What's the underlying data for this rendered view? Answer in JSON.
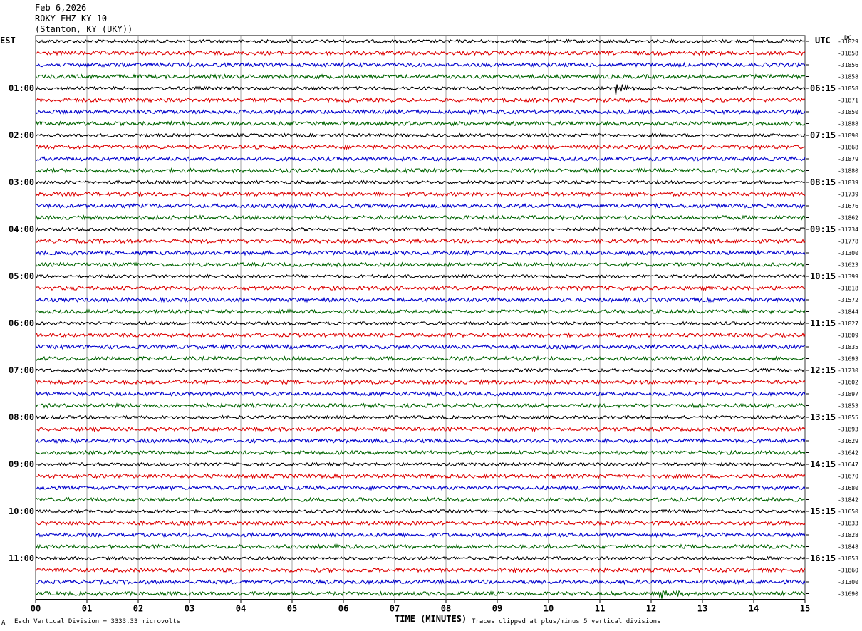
{
  "header": {
    "date": "Feb 6,2026",
    "station": "ROKY EHZ KY 10",
    "location": "(Stanton, KY (UKY))"
  },
  "axes": {
    "left_zone": "EST",
    "right_zone": "UTC",
    "dc_label": "DC",
    "xlabel": "TIME (MINUTES)"
  },
  "footer": {
    "scale_note": "Each Vertical Division = 3333.33 microvolts",
    "clip_note": "Traces clipped at plus/minus 5 vertical divisions",
    "mark": "A"
  },
  "colors": {
    "row0": "#000000",
    "row1": "#dd0000",
    "row2": "#0000cc",
    "row3": "#006400",
    "grid": "#000000"
  },
  "chart_data": {
    "type": "line",
    "title": "ROKY EHZ KY 10",
    "xlabel": "TIME (MINUTES)",
    "x_ticks": [
      "00",
      "01",
      "02",
      "03",
      "04",
      "05",
      "06",
      "07",
      "08",
      "09",
      "10",
      "11",
      "12",
      "13",
      "14",
      "15"
    ],
    "xlim": [
      0,
      15
    ],
    "rows_per_hour": 4,
    "left_hour_labels": [
      "01:00",
      "02:00",
      "03:00",
      "04:00",
      "05:00",
      "06:00",
      "07:00",
      "08:00",
      "09:00",
      "10:00",
      "11:00"
    ],
    "right_hour_labels": [
      "06:15",
      "07:15",
      "08:15",
      "09:15",
      "10:15",
      "11:15",
      "12:15",
      "13:15",
      "14:15",
      "15:15",
      "16:15"
    ],
    "dc_offsets": [
      "-31829",
      "-31858",
      "-31856",
      "-31858",
      "-31858",
      "-31871",
      "-31850",
      "-31888",
      "-31890",
      "-31868",
      "-31879",
      "-31880",
      "-31839",
      "-31739",
      "-31676",
      "-31862",
      "-31734",
      "-31778",
      "-31300",
      "-31623",
      "-31399",
      "-31818",
      "-31572",
      "-31844",
      "-31827",
      "-31809",
      "-31835",
      "-31693",
      "-31230",
      "-31602",
      "-31897",
      "-31853",
      "-31855",
      "-31893",
      "-31629",
      "-31642",
      "-31647",
      "-31670",
      "-31680",
      "-31842",
      "-31650",
      "-31833",
      "-31828",
      "-31848",
      "-31853",
      "-31860",
      "-31300",
      "-31690"
    ],
    "events": [
      {
        "row": 4,
        "minute": 11.3,
        "amplitude": "medium"
      },
      {
        "row": 47,
        "minute": 12.2,
        "amplitude": "large"
      }
    ]
  }
}
